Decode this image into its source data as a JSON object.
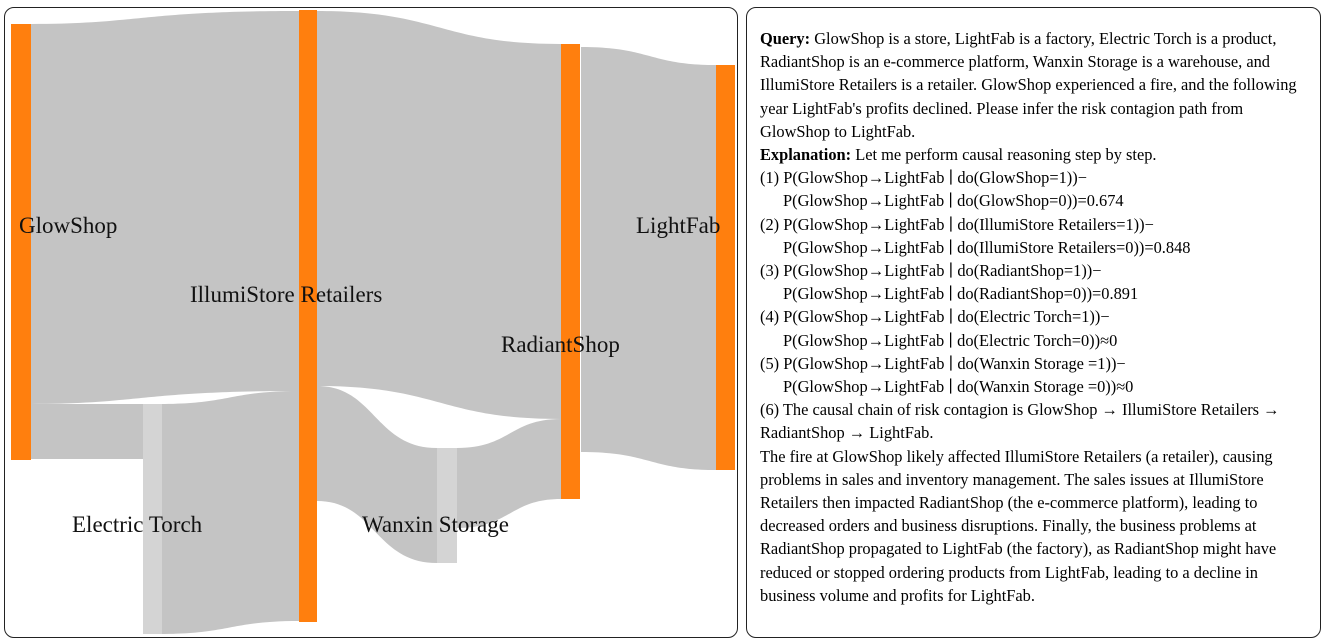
{
  "diagram": {
    "type": "sankey",
    "nodes": [
      {
        "id": "glowshop",
        "label": "GlowShop"
      },
      {
        "id": "illumistore",
        "label": "IllumiStore Retailers"
      },
      {
        "id": "radiantshop",
        "label": "RadiantShop"
      },
      {
        "id": "lightfab",
        "label": "LightFab"
      },
      {
        "id": "electric_torch",
        "label": "Electric Torch"
      },
      {
        "id": "wanxin",
        "label": "Wanxin Storage"
      }
    ],
    "links": [
      {
        "source": "GlowShop",
        "target": "IllumiStore Retailers",
        "value": 3.8
      },
      {
        "source": "GlowShop",
        "target": "Electric Torch",
        "value": 0.55
      },
      {
        "source": "Electric Torch",
        "target": "IllumiStore Retailers",
        "value": 2.3
      },
      {
        "source": "IllumiStore Retailers",
        "target": "RadiantShop",
        "value": 3.75
      },
      {
        "source": "IllumiStore Retailers",
        "target": "Wanxin Storage",
        "value": 1.15
      },
      {
        "source": "Wanxin Storage",
        "target": "RadiantShop",
        "value": 0.8
      },
      {
        "source": "RadiantShop",
        "target": "LightFab",
        "value": 4.05
      }
    ],
    "colors": {
      "node": "#ff7f0e",
      "intermediate_node": "#d4d4d4",
      "link": "#c4c4c4"
    }
  },
  "explanation_panel": {
    "query_label": "Query:",
    "query_text": "GlowShop is a store, LightFab is a factory, Electric Torch is a product, RadiantShop is an e-commerce platform, Wanxin Storage is a warehouse, and IllumiStore Retailers is a retailer. GlowShop experienced a fire, and the following year LightFab's profits declined. Please infer the risk contagion path from GlowShop to LightFab.",
    "explanation_label": "Explanation:",
    "explanation_text": "Let me perform causal reasoning step by step.",
    "steps": [
      {
        "line1": "(1) P(GlowShop→LightFab ∣ do(GlowShop=1))−",
        "line2": "P(GlowShop→LightFab ∣ do(GlowShop=0))=0.674"
      },
      {
        "line1": "(2) P(GlowShop→LightFab ∣ do(IllumiStore Retailers=1))−",
        "line2": "P(GlowShop→LightFab ∣ do(IllumiStore Retailers=0))=0.848"
      },
      {
        "line1": "(3) P(GlowShop→LightFab ∣ do(RadiantShop=1))−",
        "line2": "P(GlowShop→LightFab ∣ do(RadiantShop=0))=0.891"
      },
      {
        "line1": "(4) P(GlowShop→LightFab ∣ do(Electric Torch=1))−",
        "line2": "P(GlowShop→LightFab ∣ do(Electric Torch=0))≈0"
      },
      {
        "line1": "(5) P(GlowShop→LightFab ∣ do(Wanxin Storage =1))−",
        "line2": "P(GlowShop→LightFab ∣ do(Wanxin Storage =0))≈0"
      }
    ],
    "chain": "(6) The causal chain of risk contagion is GlowShop → IllumiStore Retailers → RadiantShop → LightFab.",
    "conclusion": "The fire at GlowShop likely affected IllumiStore Retailers (a retailer), causing problems in sales and inventory management. The sales issues at IllumiStore Retailers then impacted RadiantShop (the e-commerce platform), leading to decreased orders and business disruptions. Finally, the business problems at RadiantShop propagated to LightFab (the factory), as RadiantShop might have reduced or stopped ordering products from LightFab, leading to a decline in business volume and profits for LightFab."
  }
}
